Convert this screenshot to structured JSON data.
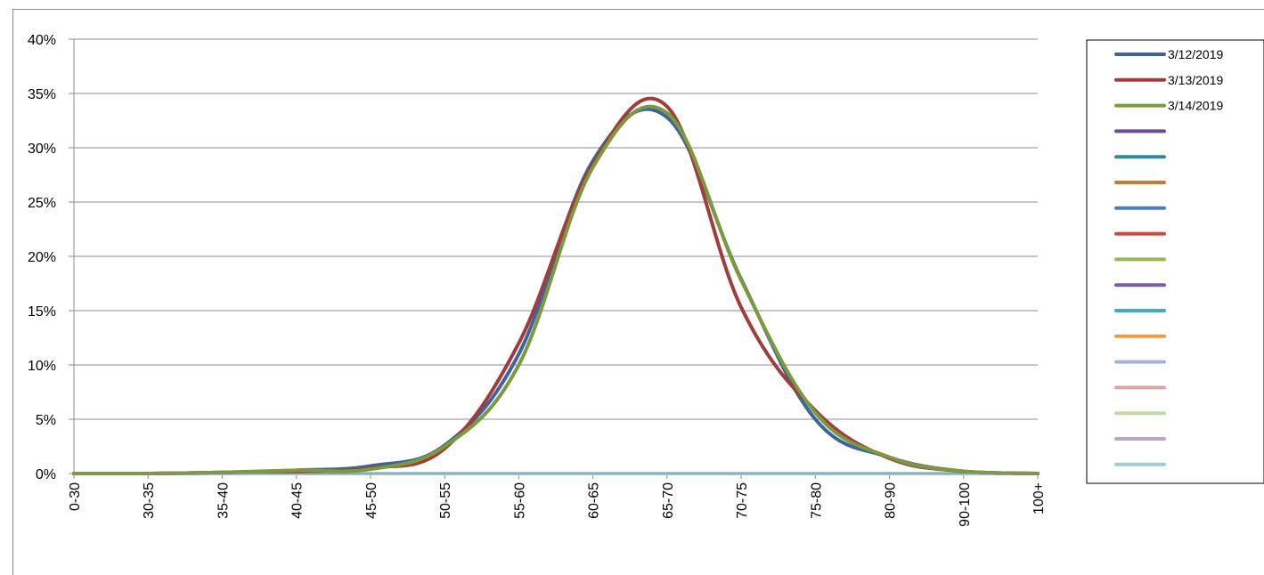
{
  "chart_data": {
    "type": "line",
    "title": "",
    "xlabel": "",
    "ylabel": "",
    "categories": [
      "0-30",
      "30-35",
      "35-40",
      "40-45",
      "45-50",
      "50-55",
      "55-60",
      "60-65",
      "65-70",
      "70-75",
      "75-80",
      "80-90",
      "90-100",
      "100+"
    ],
    "ylim": [
      0,
      40
    ],
    "yticks": [
      0,
      5,
      10,
      15,
      20,
      25,
      30,
      35,
      40
    ],
    "ytick_labels": [
      "0%",
      "5%",
      "10%",
      "15%",
      "20%",
      "25%",
      "30%",
      "35%",
      "40%"
    ],
    "grid": true,
    "legend_position": "right",
    "series": [
      {
        "name": "3/12/2019",
        "color": "#3e64a0",
        "values": [
          0,
          0,
          0.1,
          0.3,
          0.7,
          2.6,
          11.0,
          28.8,
          32.8,
          17.9,
          5.0,
          1.5,
          0.2,
          0
        ]
      },
      {
        "name": "3/13/2019",
        "color": "#a33b3b",
        "values": [
          0,
          0,
          0.1,
          0.2,
          0.5,
          2.3,
          12.0,
          28.5,
          33.8,
          15.3,
          5.8,
          1.4,
          0.2,
          0
        ]
      },
      {
        "name": "3/14/2019",
        "color": "#7b9a3c",
        "values": [
          0,
          0,
          0.1,
          0.3,
          0.4,
          2.5,
          10.0,
          28.2,
          33.2,
          17.8,
          5.6,
          1.5,
          0.2,
          0
        ]
      },
      {
        "name": "",
        "color": "#6f4c92",
        "values": [
          0,
          0,
          0,
          0,
          0,
          0,
          0,
          0,
          0,
          0,
          0,
          0,
          0,
          0
        ]
      },
      {
        "name": "",
        "color": "#2f8b9b",
        "values": [
          0,
          0,
          0,
          0,
          0,
          0,
          0,
          0,
          0,
          0,
          0,
          0,
          0,
          0
        ]
      },
      {
        "name": "",
        "color": "#c77a34",
        "values": [
          0,
          0,
          0,
          0,
          0,
          0,
          0,
          0,
          0,
          0,
          0,
          0,
          0,
          0
        ]
      },
      {
        "name": "",
        "color": "#4a7ec0",
        "values": [
          0,
          0,
          0,
          0,
          0,
          0,
          0,
          0,
          0,
          0,
          0,
          0,
          0,
          0
        ]
      },
      {
        "name": "",
        "color": "#c54a44",
        "values": [
          0,
          0,
          0,
          0,
          0,
          0,
          0,
          0,
          0,
          0,
          0,
          0,
          0,
          0
        ]
      },
      {
        "name": "",
        "color": "#95b852",
        "values": [
          0,
          0,
          0,
          0,
          0,
          0,
          0,
          0,
          0,
          0,
          0,
          0,
          0,
          0
        ]
      },
      {
        "name": "",
        "color": "#7d5ba6",
        "values": [
          0,
          0,
          0,
          0,
          0,
          0,
          0,
          0,
          0,
          0,
          0,
          0,
          0,
          0
        ]
      },
      {
        "name": "",
        "color": "#3fabc4",
        "values": [
          0,
          0,
          0,
          0,
          0,
          0,
          0,
          0,
          0,
          0,
          0,
          0,
          0,
          0
        ]
      },
      {
        "name": "",
        "color": "#f39a3c",
        "values": [
          0,
          0,
          0,
          0,
          0,
          0,
          0,
          0,
          0,
          0,
          0,
          0,
          0,
          0
        ]
      },
      {
        "name": "",
        "color": "#a3b4d6",
        "values": [
          0,
          0,
          0,
          0,
          0,
          0,
          0,
          0,
          0,
          0,
          0,
          0,
          0,
          0
        ]
      },
      {
        "name": "",
        "color": "#dba6a4",
        "values": [
          0,
          0,
          0,
          0,
          0,
          0,
          0,
          0,
          0,
          0,
          0,
          0,
          0,
          0
        ]
      },
      {
        "name": "",
        "color": "#c5d9a6",
        "values": [
          0,
          0,
          0,
          0,
          0,
          0,
          0,
          0,
          0,
          0,
          0,
          0,
          0,
          0
        ]
      },
      {
        "name": "",
        "color": "#b6a7c9",
        "values": [
          0,
          0,
          0,
          0,
          0,
          0,
          0,
          0,
          0,
          0,
          0,
          0,
          0,
          0
        ]
      },
      {
        "name": "",
        "color": "#9ccdd9",
        "values": [
          0,
          0,
          0,
          0,
          0,
          0,
          0,
          0,
          0,
          0,
          0,
          0,
          0,
          0
        ]
      }
    ]
  }
}
